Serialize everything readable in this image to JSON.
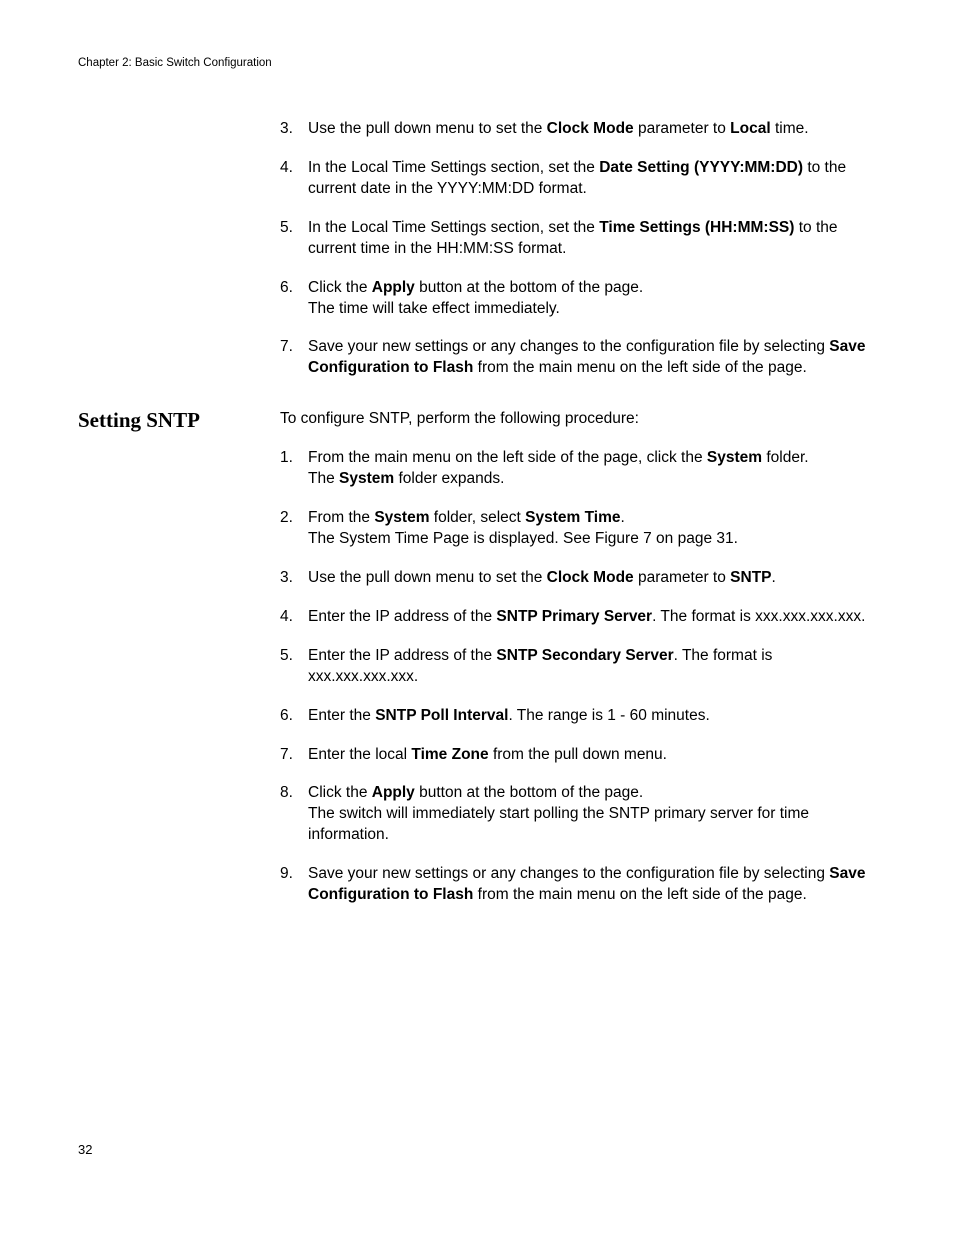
{
  "header": "Chapter 2: Basic Switch Configuration",
  "pageNumber": "32",
  "section1": {
    "items": [
      {
        "num": "3.",
        "html": "Use the pull down menu to set the <b>Clock Mode</b> parameter to <b>Local</b> time."
      },
      {
        "num": "4.",
        "html": "In the Local Time Settings section, set the <b>Date Setting (YYYY:MM:DD)</b> to the current date in the YYYY:MM:DD format."
      },
      {
        "num": "5.",
        "html": "In the Local Time Settings section, set the <b>Time Settings (HH:MM:SS)</b> to the current time in the HH:MM:SS format."
      },
      {
        "num": "6.",
        "html": "Click the <b>Apply</b> button at the bottom of the page.<br>The time will take effect immediately."
      },
      {
        "num": "7.",
        "html": "Save your new settings or any changes to the configuration file by selecting <b>Save Configuration to Flash</b> from the main menu on the left side of the page."
      }
    ]
  },
  "section2": {
    "heading": "Setting SNTP",
    "intro": "To configure SNTP, perform the following procedure:",
    "items": [
      {
        "num": "1.",
        "html": "From the main menu on the left side of the page, click the <b>System</b> folder.<br>The <b>System</b> folder expands."
      },
      {
        "num": "2.",
        "html": "From the <b>System</b> folder, select <b>System Time</b>.<br>The System Time Page is displayed. See Figure 7 on page 31."
      },
      {
        "num": "3.",
        "html": "Use the pull down menu to set the <b>Clock Mode</b> parameter to <b>SNTP</b>."
      },
      {
        "num": "4.",
        "html": "Enter the IP address of the <b>SNTP Primary Server</b>. The format is xxx.xxx.xxx.xxx."
      },
      {
        "num": "5.",
        "html": "Enter the IP address of the <b>SNTP Secondary Server</b>. The format is xxx.xxx.xxx.xxx."
      },
      {
        "num": "6.",
        "html": "Enter the <b>SNTP Poll Interval</b>. The range is 1 - 60 minutes."
      },
      {
        "num": "7.",
        "html": "Enter the local <b>Time Zone</b> from the pull down menu."
      },
      {
        "num": "8.",
        "html": "Click the <b>Apply</b> button at the bottom of the page.<br>The switch will immediately start polling the SNTP primary server for time information."
      },
      {
        "num": "9.",
        "html": "Save your new settings or any changes to the configuration file by selecting <b>Save Configuration to Flash</b> from the main menu on the left side of the page."
      }
    ]
  }
}
